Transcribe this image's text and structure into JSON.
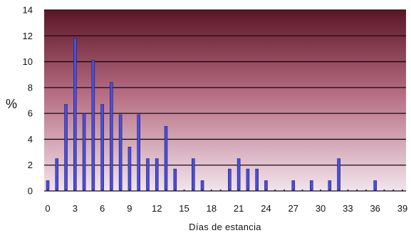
{
  "chart_data": {
    "type": "bar",
    "title": "",
    "xlabel": "Días de estancia",
    "ylabel": "%",
    "xlim": [
      0,
      39
    ],
    "ylim": [
      0,
      14
    ],
    "xticks": [
      "0",
      "3",
      "6",
      "9",
      "12",
      "15",
      "18",
      "21",
      "24",
      "27",
      "30",
      "33",
      "36",
      "39"
    ],
    "yticks": [
      "0",
      "2",
      "4",
      "6",
      "8",
      "10",
      "12",
      "14"
    ],
    "grid": true,
    "colors": {
      "bar": "#4a4fd6",
      "bar_edge": "#1c1c7a",
      "bg_top": "#5b1626",
      "bg_bottom": "#f2e4ec",
      "grid": "#1a0a10"
    },
    "x": [
      0,
      1,
      2,
      3,
      4,
      5,
      6,
      7,
      8,
      9,
      10,
      11,
      12,
      13,
      14,
      16,
      17,
      20,
      21,
      22,
      23,
      24,
      27,
      29,
      31,
      32,
      36
    ],
    "values": [
      0.8,
      2.5,
      6.7,
      11.8,
      6.0,
      10.1,
      6.7,
      8.4,
      5.9,
      3.4,
      5.9,
      2.5,
      2.5,
      5.0,
      1.7,
      2.5,
      0.8,
      1.7,
      2.5,
      1.7,
      1.7,
      0.8,
      0.8,
      0.8,
      0.8,
      2.5,
      0.8
    ]
  }
}
